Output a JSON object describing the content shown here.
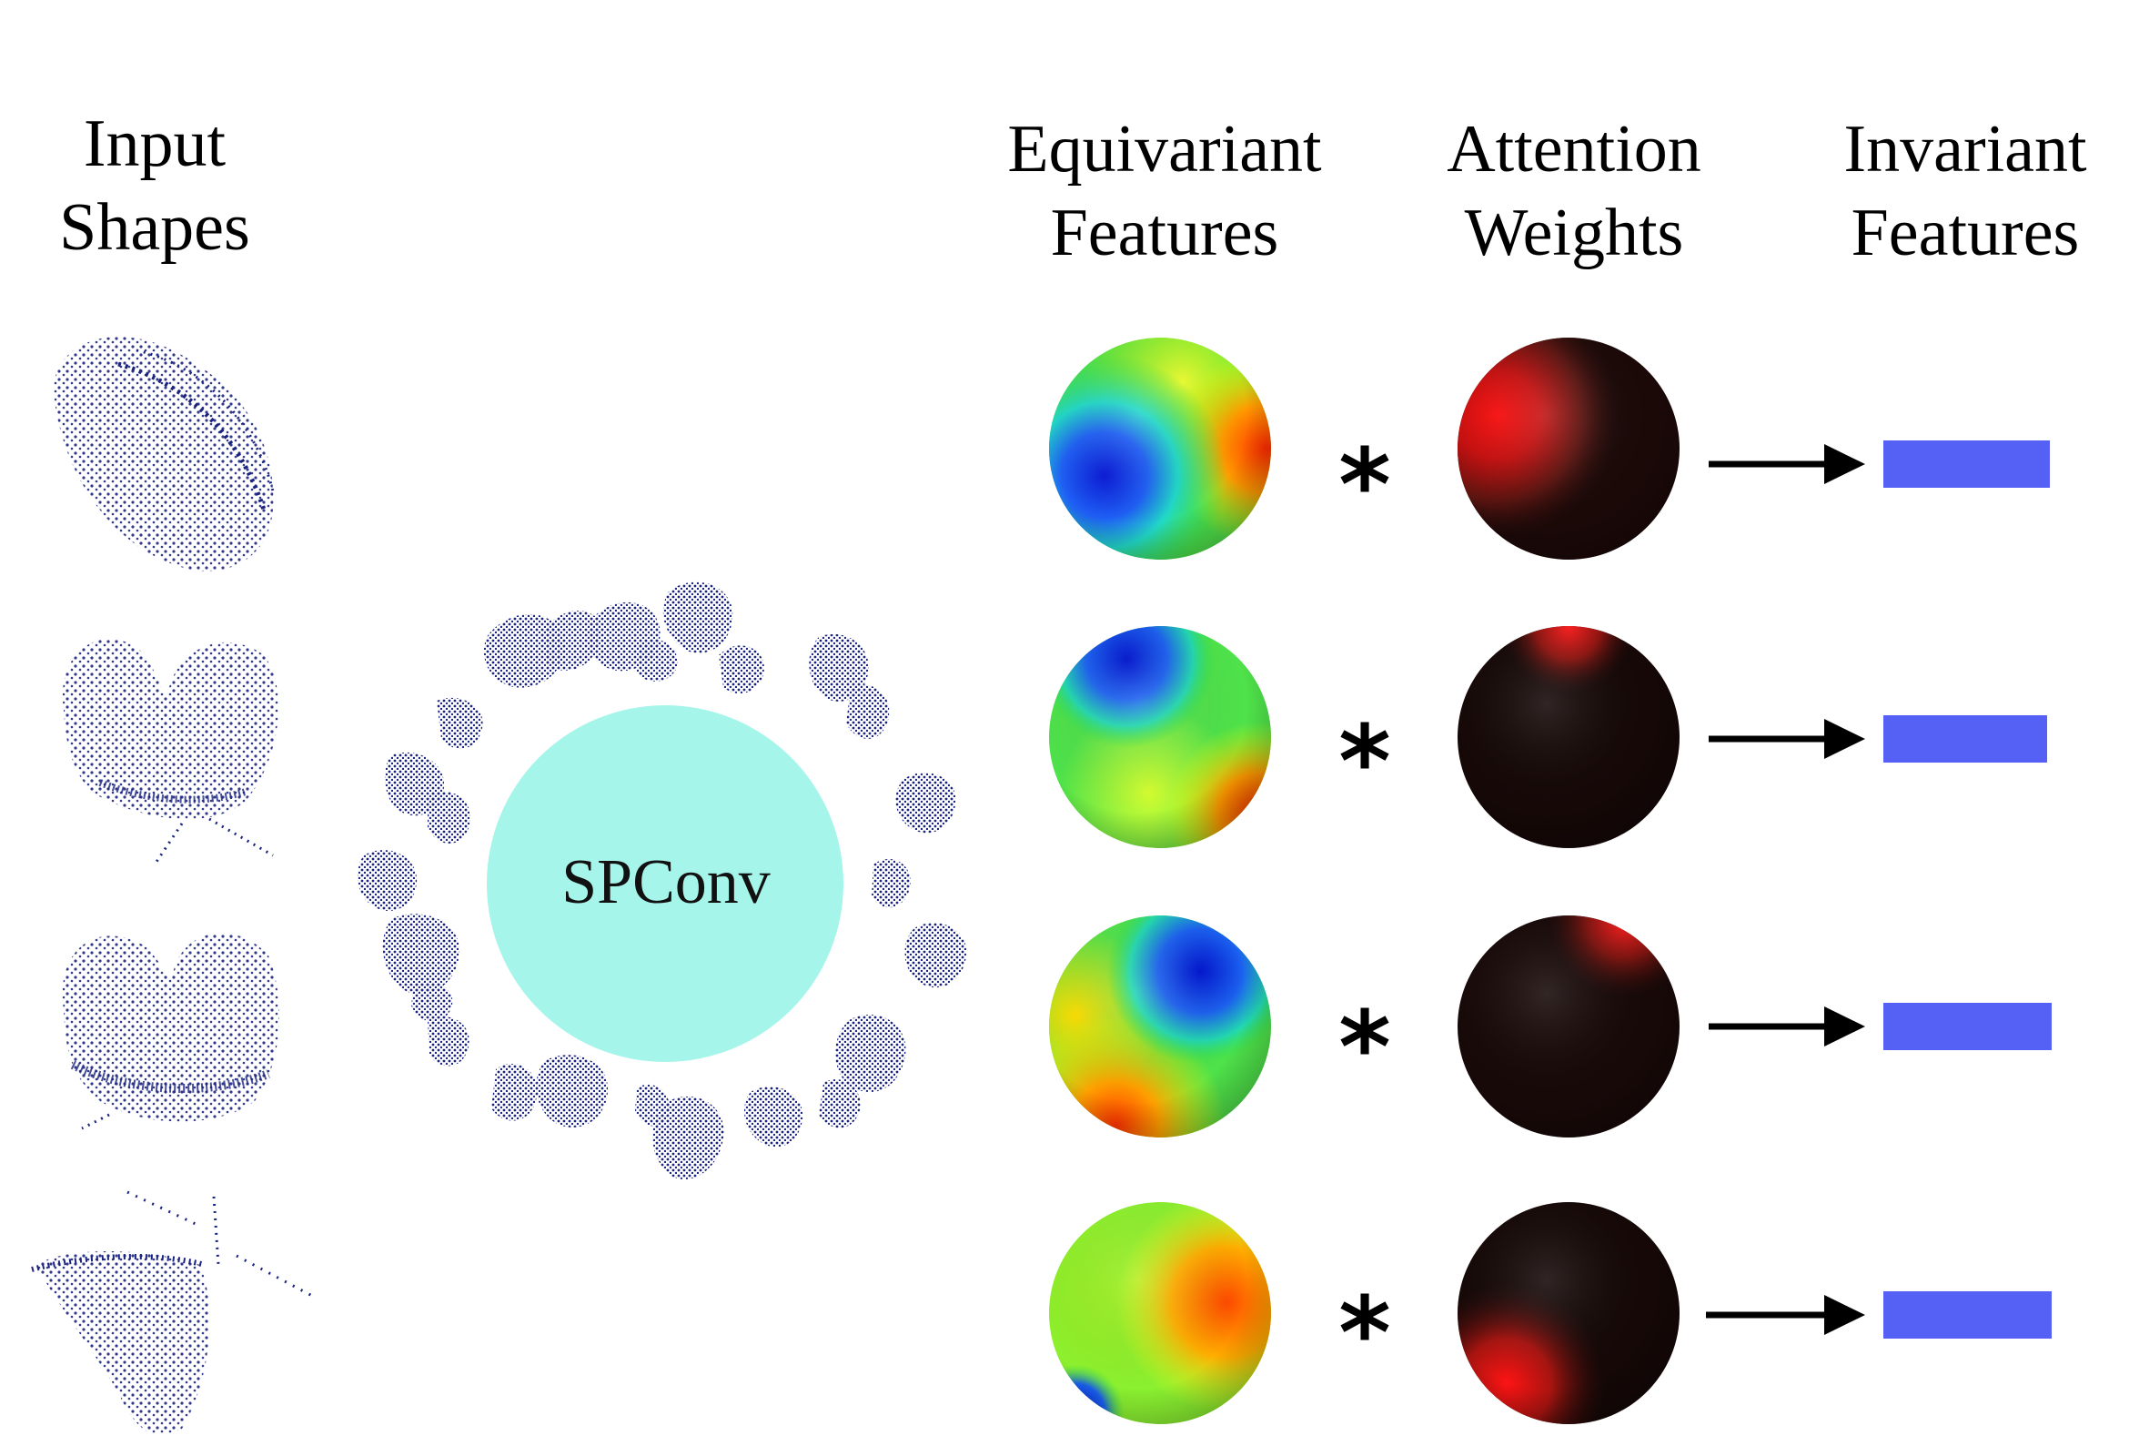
{
  "columns": {
    "input": {
      "line1": "Input",
      "line2": "Shapes"
    },
    "equivariant": {
      "line1": "Equivariant",
      "line2": "Features"
    },
    "attention": {
      "line1": "Attention",
      "line2": "Weights"
    },
    "invariant": {
      "line1": "Invariant",
      "line2": "Features"
    }
  },
  "center": {
    "label": "SPConv"
  },
  "operator": "*",
  "colors": {
    "spconv_circle": "#a6f5ea",
    "point_cloud": "#1a237e",
    "invariant_bar": "#5560f5",
    "arrow": "#000000"
  },
  "rows": [
    {
      "id": 1,
      "operator": "*"
    },
    {
      "id": 2,
      "operator": "*"
    },
    {
      "id": 3,
      "operator": "*"
    },
    {
      "id": 4,
      "operator": "*"
    }
  ]
}
